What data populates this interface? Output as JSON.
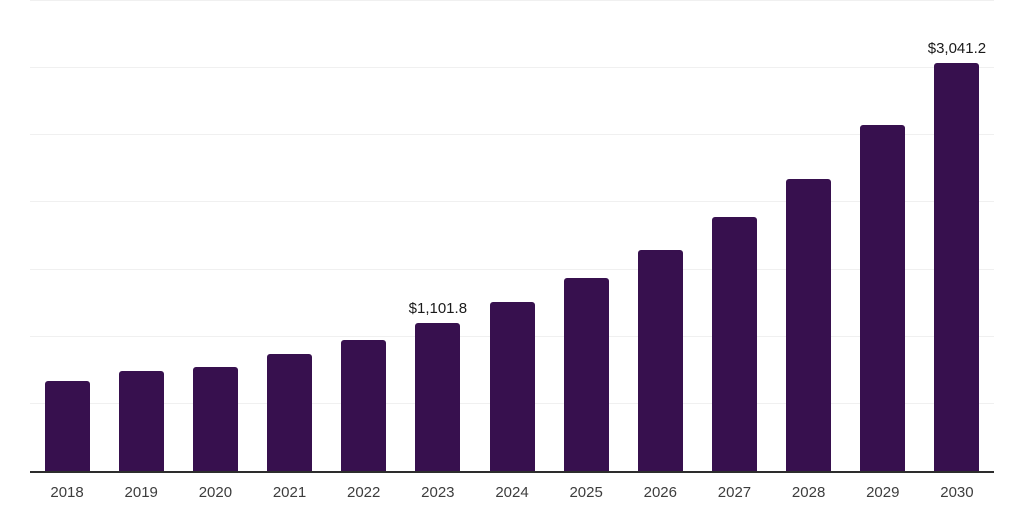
{
  "chart_data": {
    "type": "bar",
    "title": "",
    "xlabel": "",
    "ylabel": "",
    "categories": [
      "2018",
      "2019",
      "2020",
      "2021",
      "2022",
      "2023",
      "2024",
      "2025",
      "2026",
      "2027",
      "2028",
      "2029",
      "2030"
    ],
    "values": [
      670,
      742,
      776,
      870,
      974,
      1101.8,
      1257,
      1435,
      1643,
      1889,
      2178,
      2573,
      3041.2
    ],
    "bar_labels": [
      "",
      "",
      "",
      "",
      "",
      "$1,101.8",
      "",
      "",
      "",
      "",
      "",
      "",
      "$3,041.2"
    ],
    "ylim": [
      0,
      3500
    ],
    "gridline_interval": 500,
    "grid": "horizontal",
    "legend": "none",
    "y_axis_tick_labels_visible": false,
    "colors": {
      "bar": "#37104E",
      "axis_line": "#2D2D2D",
      "gridline": "#F0F0F0",
      "tick_label": "#3D3D3D",
      "data_label": "#1A1A1A",
      "background": "#FFFFFF"
    }
  }
}
